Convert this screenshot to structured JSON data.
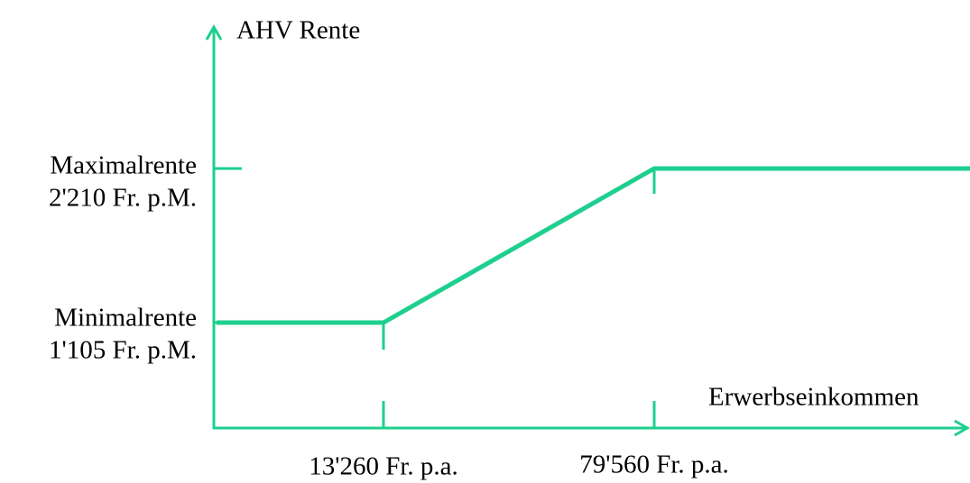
{
  "y_axis": {
    "title": "AHV Rente",
    "ticks": [
      {
        "name": "Maximalrente",
        "amount": "2'210 Fr. p.M."
      },
      {
        "name": "Minimalrente",
        "amount": "1'105 Fr. p.M."
      }
    ]
  },
  "x_axis": {
    "title": "Erwerbseinkommen",
    "ticks": [
      "13'260 Fr. p.a.",
      "79'560 Fr. p.a."
    ]
  }
}
